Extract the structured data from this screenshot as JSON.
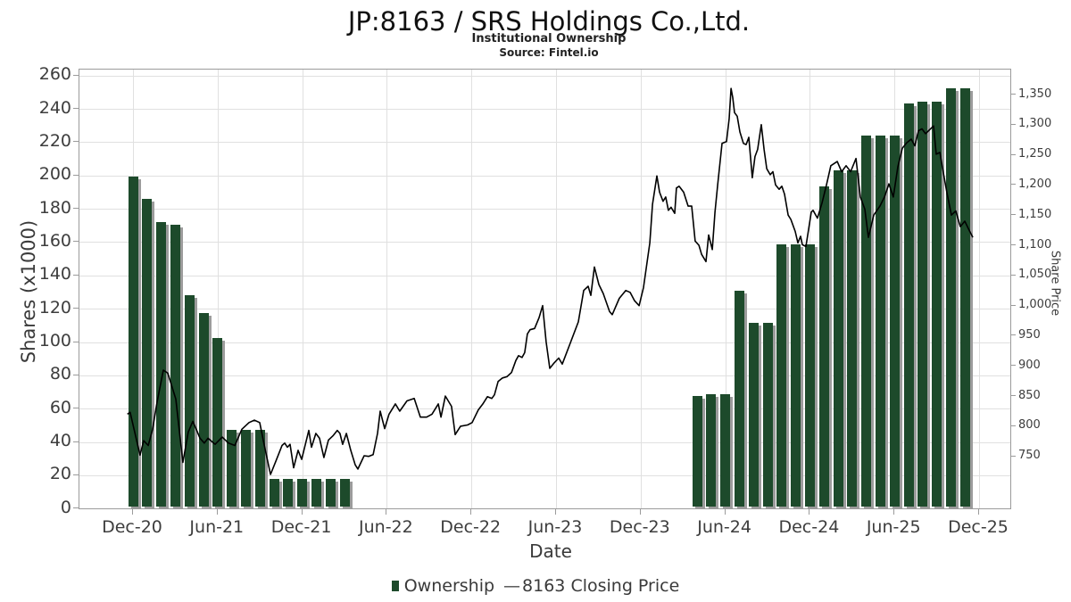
{
  "header": {
    "title": "JP:8163 / SRS Holdings Co.,Ltd.",
    "subtitle": "Institutional Ownership",
    "source": "Source: Fintel.io"
  },
  "legend": {
    "ownership_label": "Ownership",
    "dash": "—",
    "price_label": "8163 Closing Price"
  },
  "axes": {
    "x": {
      "title": "Date",
      "ticks": [
        {
          "m": 0,
          "label": "Dec-20"
        },
        {
          "m": 6,
          "label": "Jun-21"
        },
        {
          "m": 12,
          "label": "Dec-21"
        },
        {
          "m": 18,
          "label": "Jun-22"
        },
        {
          "m": 24,
          "label": "Dec-22"
        },
        {
          "m": 30,
          "label": "Jun-23"
        },
        {
          "m": 36,
          "label": "Dec-23"
        },
        {
          "m": 42,
          "label": "Jun-24"
        },
        {
          "m": 48,
          "label": "Dec-24"
        },
        {
          "m": 54,
          "label": "Jun-25"
        },
        {
          "m": 60,
          "label": "Dec-25"
        }
      ]
    },
    "y_left": {
      "title": "Shares (x1000)",
      "min": 0,
      "max": 260,
      "step": 20
    },
    "y_right": {
      "title": "Share Price",
      "min": 750,
      "max": 1350,
      "step": 50
    }
  },
  "colors": {
    "bar": "#1d4a2b",
    "bar_shadow": "#9c9c9c",
    "line": "#000000",
    "grid": "#e0e0e0",
    "frame": "#9b9b9b"
  },
  "chart_data": {
    "type": "combo",
    "title": "JP:8163 / SRS Holdings Co.,Ltd.",
    "subtitle": "Institutional Ownership",
    "source": "Source: Fintel.io",
    "x_unit": "months since Dec-2020",
    "series": [
      {
        "name": "Ownership",
        "type": "bar",
        "axis": "left",
        "unit": "shares x1000",
        "points": [
          {
            "date": "Dec-20",
            "m": 0,
            "value": 198
          },
          {
            "date": "Jan-21",
            "m": 1,
            "value": 185
          },
          {
            "date": "Feb-21",
            "m": 2,
            "value": 171
          },
          {
            "date": "Mar-21",
            "m": 3,
            "value": 169
          },
          {
            "date": "Apr-21",
            "m": 4,
            "value": 127
          },
          {
            "date": "May-21",
            "m": 5,
            "value": 116
          },
          {
            "date": "Jun-21",
            "m": 6,
            "value": 101
          },
          {
            "date": "Jul-21",
            "m": 7,
            "value": 46
          },
          {
            "date": "Aug-21",
            "m": 8,
            "value": 46
          },
          {
            "date": "Sep-21",
            "m": 9,
            "value": 46
          },
          {
            "date": "Oct-21",
            "m": 10,
            "value": 16.5
          },
          {
            "date": "Nov-21",
            "m": 11,
            "value": 16.5
          },
          {
            "date": "Dec-21",
            "m": 12,
            "value": 16.5
          },
          {
            "date": "Jan-22",
            "m": 13,
            "value": 16.5
          },
          {
            "date": "Feb-22",
            "m": 14,
            "value": 16.5
          },
          {
            "date": "Mar-22",
            "m": 15,
            "value": 16.5
          },
          {
            "date": "Apr-24",
            "m": 40,
            "value": 66.5
          },
          {
            "date": "May-24",
            "m": 41,
            "value": 67.5
          },
          {
            "date": "Jun-24",
            "m": 42,
            "value": 67.5
          },
          {
            "date": "Jul-24",
            "m": 43,
            "value": 129.5
          },
          {
            "date": "Aug-24",
            "m": 44,
            "value": 110.5
          },
          {
            "date": "Sep-24",
            "m": 45,
            "value": 110.5
          },
          {
            "date": "Oct-24",
            "m": 46,
            "value": 157.5
          },
          {
            "date": "Nov-24",
            "m": 47,
            "value": 157.5
          },
          {
            "date": "Dec-24",
            "m": 48,
            "value": 157.5
          },
          {
            "date": "Jan-25",
            "m": 49,
            "value": 192
          },
          {
            "date": "Feb-25",
            "m": 50,
            "value": 202
          },
          {
            "date": "Mar-25",
            "m": 51,
            "value": 202
          },
          {
            "date": "Apr-25",
            "m": 52,
            "value": 222.5
          },
          {
            "date": "May-25",
            "m": 53,
            "value": 222.5
          },
          {
            "date": "Jun-25",
            "m": 54,
            "value": 222.5
          },
          {
            "date": "Jul-25",
            "m": 55,
            "value": 242
          },
          {
            "date": "Aug-25",
            "m": 56,
            "value": 243
          },
          {
            "date": "Sep-25",
            "m": 57,
            "value": 243
          },
          {
            "date": "Oct-25",
            "m": 58,
            "value": 251
          },
          {
            "date": "Nov-25",
            "m": 59,
            "value": 251
          }
        ]
      },
      {
        "name": "8163 Closing Price",
        "type": "line",
        "axis": "right",
        "unit": "JPY",
        "points": [
          [
            -0.4,
            820
          ],
          [
            -0.2,
            823
          ],
          [
            0.5,
            752
          ],
          [
            0.76,
            776
          ],
          [
            1.08,
            768
          ],
          [
            1.39,
            795
          ],
          [
            1.71,
            840
          ],
          [
            2.15,
            893
          ],
          [
            2.47,
            888
          ],
          [
            3.04,
            845
          ],
          [
            3.54,
            740
          ],
          [
            3.92,
            790
          ],
          [
            4.24,
            808
          ],
          [
            4.49,
            795
          ],
          [
            4.75,
            780
          ],
          [
            5.06,
            772
          ],
          [
            5.32,
            780
          ],
          [
            5.82,
            770
          ],
          [
            6.33,
            782
          ],
          [
            6.77,
            772
          ],
          [
            7.22,
            768
          ],
          [
            7.72,
            795
          ],
          [
            8.23,
            806
          ],
          [
            8.61,
            810
          ],
          [
            8.99,
            806
          ],
          [
            9.3,
            770
          ],
          [
            9.75,
            720
          ],
          [
            10.13,
            742
          ],
          [
            10.57,
            768
          ],
          [
            10.76,
            772
          ],
          [
            10.95,
            765
          ],
          [
            11.14,
            770
          ],
          [
            11.39,
            731
          ],
          [
            11.71,
            760
          ],
          [
            11.96,
            745
          ],
          [
            12.47,
            793
          ],
          [
            12.66,
            765
          ],
          [
            12.97,
            788
          ],
          [
            13.23,
            780
          ],
          [
            13.54,
            748
          ],
          [
            13.86,
            777
          ],
          [
            14.18,
            784
          ],
          [
            14.49,
            793
          ],
          [
            14.68,
            788
          ],
          [
            14.87,
            770
          ],
          [
            15.13,
            788
          ],
          [
            15.44,
            760
          ],
          [
            15.76,
            736
          ],
          [
            15.95,
            729
          ],
          [
            16.39,
            751
          ],
          [
            16.71,
            750
          ],
          [
            17.03,
            753
          ],
          [
            17.34,
            788
          ],
          [
            17.53,
            825
          ],
          [
            17.85,
            796
          ],
          [
            18.16,
            820
          ],
          [
            18.61,
            837
          ],
          [
            18.92,
            825
          ],
          [
            19.43,
            842
          ],
          [
            19.94,
            846
          ],
          [
            20.38,
            815
          ],
          [
            20.82,
            815
          ],
          [
            21.2,
            820
          ],
          [
            21.65,
            837
          ],
          [
            21.84,
            815
          ],
          [
            22.15,
            850
          ],
          [
            22.59,
            833
          ],
          [
            22.85,
            786
          ],
          [
            23.23,
            800
          ],
          [
            23.73,
            802
          ],
          [
            24.05,
            806
          ],
          [
            24.49,
            827
          ],
          [
            24.81,
            837
          ],
          [
            25.13,
            849
          ],
          [
            25.44,
            846
          ],
          [
            25.63,
            852
          ],
          [
            25.89,
            874
          ],
          [
            26.2,
            880
          ],
          [
            26.52,
            882
          ],
          [
            26.84,
            889
          ],
          [
            27.15,
            909
          ],
          [
            27.34,
            917
          ],
          [
            27.59,
            914
          ],
          [
            27.78,
            922
          ],
          [
            27.97,
            953
          ],
          [
            28.16,
            960
          ],
          [
            28.48,
            962
          ],
          [
            28.8,
            980
          ],
          [
            29.05,
            1000
          ],
          [
            29.3,
            940
          ],
          [
            29.56,
            896
          ],
          [
            29.87,
            905
          ],
          [
            30.19,
            913
          ],
          [
            30.44,
            903
          ],
          [
            31.01,
            938
          ],
          [
            31.58,
            973
          ],
          [
            31.96,
            1025
          ],
          [
            32.28,
            1032
          ],
          [
            32.47,
            1017
          ],
          [
            32.72,
            1064
          ],
          [
            33.04,
            1035
          ],
          [
            33.35,
            1020
          ],
          [
            33.8,
            990
          ],
          [
            33.99,
            985
          ],
          [
            34.49,
            1012
          ],
          [
            34.94,
            1025
          ],
          [
            35.25,
            1022
          ],
          [
            35.57,
            1008
          ],
          [
            35.89,
            1000
          ],
          [
            36.2,
            1030
          ],
          [
            36.65,
            1104
          ],
          [
            36.84,
            1168
          ],
          [
            37.15,
            1215
          ],
          [
            37.34,
            1188
          ],
          [
            37.59,
            1173
          ],
          [
            37.78,
            1180
          ],
          [
            37.97,
            1158
          ],
          [
            38.16,
            1163
          ],
          [
            38.42,
            1153
          ],
          [
            38.54,
            1195
          ],
          [
            38.73,
            1198
          ],
          [
            39.05,
            1188
          ],
          [
            39.37,
            1165
          ],
          [
            39.62,
            1165
          ],
          [
            39.87,
            1107
          ],
          [
            40.13,
            1100
          ],
          [
            40.32,
            1085
          ],
          [
            40.63,
            1073
          ],
          [
            40.82,
            1117
          ],
          [
            41.08,
            1093
          ],
          [
            41.27,
            1155
          ],
          [
            41.46,
            1200
          ],
          [
            41.77,
            1269
          ],
          [
            42.09,
            1272
          ],
          [
            42.28,
            1310
          ],
          [
            42.41,
            1360
          ],
          [
            42.53,
            1345
          ],
          [
            42.66,
            1320
          ],
          [
            42.85,
            1314
          ],
          [
            43.04,
            1288
          ],
          [
            43.29,
            1269
          ],
          [
            43.48,
            1267
          ],
          [
            43.67,
            1279
          ],
          [
            43.92,
            1212
          ],
          [
            44.11,
            1247
          ],
          [
            44.3,
            1259
          ],
          [
            44.56,
            1300
          ],
          [
            44.75,
            1259
          ],
          [
            44.94,
            1227
          ],
          [
            45.19,
            1217
          ],
          [
            45.38,
            1222
          ],
          [
            45.57,
            1200
          ],
          [
            45.82,
            1193
          ],
          [
            46.01,
            1198
          ],
          [
            46.2,
            1185
          ],
          [
            46.46,
            1150
          ],
          [
            46.65,
            1143
          ],
          [
            46.96,
            1123
          ],
          [
            47.15,
            1104
          ],
          [
            47.34,
            1115
          ],
          [
            47.47,
            1101
          ],
          [
            47.72,
            1098
          ],
          [
            48.1,
            1155
          ],
          [
            48.23,
            1158
          ],
          [
            48.54,
            1145
          ],
          [
            48.86,
            1170
          ],
          [
            49.18,
            1200
          ],
          [
            49.49,
            1232
          ],
          [
            49.94,
            1239
          ],
          [
            50.25,
            1222
          ],
          [
            50.57,
            1232
          ],
          [
            50.89,
            1222
          ],
          [
            51.27,
            1244
          ],
          [
            51.58,
            1180
          ],
          [
            51.9,
            1160
          ],
          [
            52.15,
            1113
          ],
          [
            52.53,
            1150
          ],
          [
            52.97,
            1165
          ],
          [
            53.29,
            1180
          ],
          [
            53.61,
            1202
          ],
          [
            53.92,
            1180
          ],
          [
            54.24,
            1230
          ],
          [
            54.56,
            1261
          ],
          [
            54.87,
            1270
          ],
          [
            55.19,
            1276
          ],
          [
            55.44,
            1265
          ],
          [
            55.7,
            1290
          ],
          [
            55.95,
            1293
          ],
          [
            56.2,
            1285
          ],
          [
            56.77,
            1298
          ],
          [
            56.96,
            1251
          ],
          [
            57.22,
            1254
          ],
          [
            57.47,
            1220
          ],
          [
            57.72,
            1187
          ],
          [
            58.04,
            1150
          ],
          [
            58.35,
            1157
          ],
          [
            58.67,
            1131
          ],
          [
            58.99,
            1140
          ],
          [
            59.3,
            1125
          ],
          [
            59.56,
            1113
          ]
        ]
      }
    ]
  }
}
